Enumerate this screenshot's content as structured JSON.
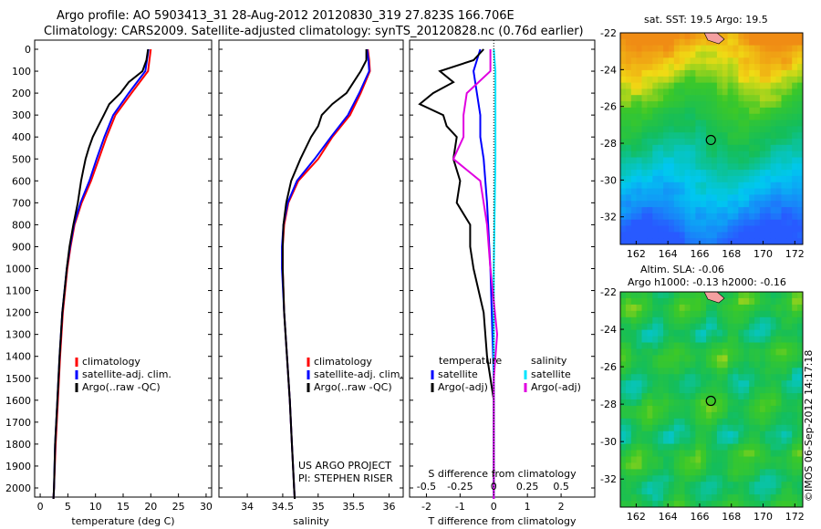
{
  "header": {
    "line1": "Argo profile: AO 5903413_31 28-Aug-2012 20120830_319 27.823S 166.706E",
    "line2": "Climatology: CARS2009. Satellite-adjusted climatology: synTS_20120828.nc (0.76d earlier)"
  },
  "colors": {
    "climatology": "#ff0000",
    "satellite": "#0000ff",
    "argo": "#000000",
    "satellite_salinity": "#00e5ff",
    "argo_adj_salinity": "#e000e0"
  },
  "chart_data": [
    {
      "type": "line",
      "name": "temperature-profile",
      "xlabel": "temperature (deg C)",
      "ylabel": "",
      "xlim": [
        -1,
        31
      ],
      "ylim": [
        2100,
        0
      ],
      "xticks": [
        0,
        5,
        10,
        15,
        20,
        25,
        30
      ],
      "yticks": [
        0,
        100,
        200,
        300,
        400,
        500,
        600,
        700,
        800,
        900,
        1000,
        1100,
        1200,
        1300,
        1400,
        1500,
        1600,
        1700,
        1800,
        1900,
        2000
      ],
      "legend": [
        "climatology",
        "satellite-adj. clim.",
        "Argo(..raw -QC)"
      ],
      "legend_position": "lower-right",
      "series": [
        {
          "name": "climatology",
          "color": "#ff0000",
          "depth": [
            0,
            100,
            200,
            300,
            400,
            500,
            600,
            700,
            800,
            900,
            1000,
            1200,
            1400,
            1600,
            1800,
            2000,
            2050
          ],
          "values": [
            20.0,
            19.5,
            16.5,
            13.6,
            12.0,
            10.6,
            9.2,
            7.5,
            6.2,
            5.5,
            4.9,
            4.1,
            3.6,
            3.2,
            2.8,
            2.5,
            2.4
          ]
        },
        {
          "name": "satellite-adj. clim.",
          "color": "#0000ff",
          "depth": [
            0,
            100,
            200,
            300,
            400,
            500,
            600,
            700,
            800,
            900,
            1000,
            1200,
            1400,
            1600,
            1800,
            2000,
            2050
          ],
          "values": [
            19.6,
            19.0,
            16.0,
            13.2,
            11.6,
            10.2,
            8.9,
            7.3,
            6.1,
            5.4,
            4.8,
            4.0,
            3.5,
            3.1,
            2.7,
            2.5,
            2.4
          ]
        },
        {
          "name": "Argo(..raw -QC)",
          "color": "#000000",
          "depth": [
            0,
            50,
            100,
            150,
            200,
            250,
            300,
            350,
            400,
            450,
            500,
            550,
            600,
            700,
            800,
            900,
            1000,
            1200,
            1400,
            1600,
            1800,
            2000,
            2050
          ],
          "values": [
            19.5,
            19.2,
            18.5,
            16.0,
            14.5,
            12.5,
            11.5,
            10.5,
            9.5,
            8.8,
            8.2,
            7.8,
            7.4,
            6.8,
            6.0,
            5.3,
            4.8,
            4.0,
            3.5,
            3.1,
            2.7,
            2.5,
            2.4
          ]
        }
      ]
    },
    {
      "type": "line",
      "name": "salinity-profile",
      "xlabel": "salinity",
      "ylabel": "",
      "xlim": [
        33.6,
        36.2
      ],
      "ylim": [
        2100,
        0
      ],
      "xticks": [
        34,
        34.5,
        35,
        35.5,
        36
      ],
      "legend": [
        "climatology",
        "satellite-adj. clim.",
        "Argo(..raw -QC)"
      ],
      "legend_position": "lower-right",
      "annotation": [
        "US ARGO PROJECT",
        "PI: STEPHEN RISER"
      ],
      "series": [
        {
          "name": "climatology",
          "color": "#ff0000",
          "depth": [
            0,
            50,
            100,
            200,
            300,
            400,
            500,
            600,
            700,
            800,
            900,
            1000,
            1200,
            1400,
            1600,
            1800,
            2000,
            2050
          ],
          "values": [
            35.7,
            35.72,
            35.73,
            35.6,
            35.45,
            35.2,
            35.0,
            34.72,
            34.58,
            34.52,
            34.5,
            34.5,
            34.52,
            34.56,
            34.6,
            34.63,
            34.66,
            34.67
          ]
        },
        {
          "name": "satellite-adj. clim.",
          "color": "#0000ff",
          "depth": [
            0,
            50,
            100,
            200,
            300,
            400,
            500,
            600,
            700,
            800,
            900,
            1000,
            1200,
            1400,
            1600,
            1800,
            2000,
            2050
          ],
          "values": [
            35.69,
            35.71,
            35.72,
            35.58,
            35.42,
            35.18,
            34.95,
            34.7,
            34.57,
            34.51,
            34.49,
            34.49,
            34.52,
            34.56,
            34.6,
            34.63,
            34.66,
            34.67
          ]
        },
        {
          "name": "Argo(..raw -QC)",
          "color": "#000000",
          "depth": [
            0,
            50,
            100,
            150,
            200,
            250,
            300,
            350,
            400,
            500,
            600,
            700,
            800,
            900,
            1000,
            1200,
            1400,
            1600,
            1800,
            2000,
            2050
          ],
          "values": [
            35.68,
            35.68,
            35.6,
            35.5,
            35.4,
            35.2,
            35.05,
            35.0,
            34.9,
            34.75,
            34.62,
            34.55,
            34.51,
            34.5,
            34.5,
            34.52,
            34.56,
            34.6,
            34.63,
            34.66,
            34.67
          ]
        }
      ]
    },
    {
      "type": "line",
      "name": "difference-profile",
      "xlabel": "T difference from climatology",
      "xlabel_top": "S difference from climatology",
      "ylabel": "",
      "xlim": [
        -2.5,
        3.0
      ],
      "ylim": [
        2100,
        0
      ],
      "xticks": [
        -2,
        -1,
        0,
        1,
        2
      ],
      "xticks_top": [
        "-0.5",
        "-0.25",
        "0",
        "0.25",
        "0.5"
      ],
      "legend_groups": [
        {
          "title": "temperature",
          "items": [
            "satellite",
            "Argo(-adj)"
          ]
        },
        {
          "title": "salinity",
          "items": [
            "satellite",
            "Argo(-adj)"
          ]
        }
      ],
      "legend_position": "lower-center",
      "series": [
        {
          "name": "temperature satellite",
          "color": "#0000ff",
          "depth": [
            0,
            50,
            100,
            200,
            300,
            400,
            500,
            700,
            1000,
            1500,
            2000,
            2050
          ],
          "values": [
            -0.4,
            -0.5,
            -0.6,
            -0.5,
            -0.4,
            -0.4,
            -0.3,
            -0.2,
            -0.1,
            0,
            0,
            0
          ]
        },
        {
          "name": "temperature Argo(-adj)",
          "color": "#000000",
          "depth": [
            0,
            50,
            100,
            150,
            200,
            250,
            300,
            350,
            400,
            500,
            600,
            700,
            800,
            900,
            1000,
            1200,
            1400,
            1600,
            1800,
            2000,
            2050
          ],
          "values": [
            -0.3,
            -0.6,
            -1.6,
            -1.2,
            -1.8,
            -2.2,
            -1.5,
            -1.4,
            -1.1,
            -1.2,
            -1.0,
            -1.1,
            -0.7,
            -0.7,
            -0.6,
            -0.3,
            -0.2,
            0,
            0,
            0,
            0
          ]
        },
        {
          "name": "salinity satellite",
          "color": "#00e5ff",
          "depth": [
            0,
            100,
            200,
            500,
            1000,
            1500,
            2000,
            2050
          ],
          "values": [
            0.0,
            0.05,
            0.05,
            0.05,
            0.0,
            0.0,
            0.0,
            0.0
          ]
        },
        {
          "name": "salinity Argo(-adj)",
          "color": "#e000e0",
          "depth": [
            0,
            100,
            200,
            300,
            400,
            500,
            600,
            800,
            1000,
            1300,
            1500,
            1800,
            2000,
            2050
          ],
          "values": [
            -0.1,
            -0.1,
            -0.8,
            -0.9,
            -0.9,
            -1.2,
            -0.4,
            -0.2,
            -0.1,
            0.1,
            0.0,
            0.0,
            0.0,
            0.0
          ]
        }
      ]
    },
    {
      "type": "heatmap",
      "name": "sst-map",
      "title": "sat. SST: 19.5 Argo: 19.5",
      "xlim": [
        161,
        172.5
      ],
      "ylim": [
        -33.5,
        -22
      ],
      "xticks": [
        162,
        164,
        166,
        168,
        170,
        172
      ],
      "yticks": [
        -22,
        -24,
        -26,
        -28,
        -30,
        -32
      ],
      "marker": {
        "lon": 166.706,
        "lat": -27.823
      }
    },
    {
      "type": "heatmap",
      "name": "sla-map",
      "title": [
        "Altim. SLA: -0.06",
        "Argo h1000: -0.13 h2000: -0.16"
      ],
      "xlim": [
        161,
        172.5
      ],
      "ylim": [
        -33.5,
        -22
      ],
      "xticks": [
        162,
        164,
        166,
        168,
        170,
        172
      ],
      "yticks": [
        -22,
        -24,
        -26,
        -28,
        -30,
        -32
      ],
      "marker": {
        "lon": 166.706,
        "lat": -27.823
      }
    }
  ],
  "footer": {
    "credit": "©IMOS 06-Sep-2012 14:17:18"
  }
}
